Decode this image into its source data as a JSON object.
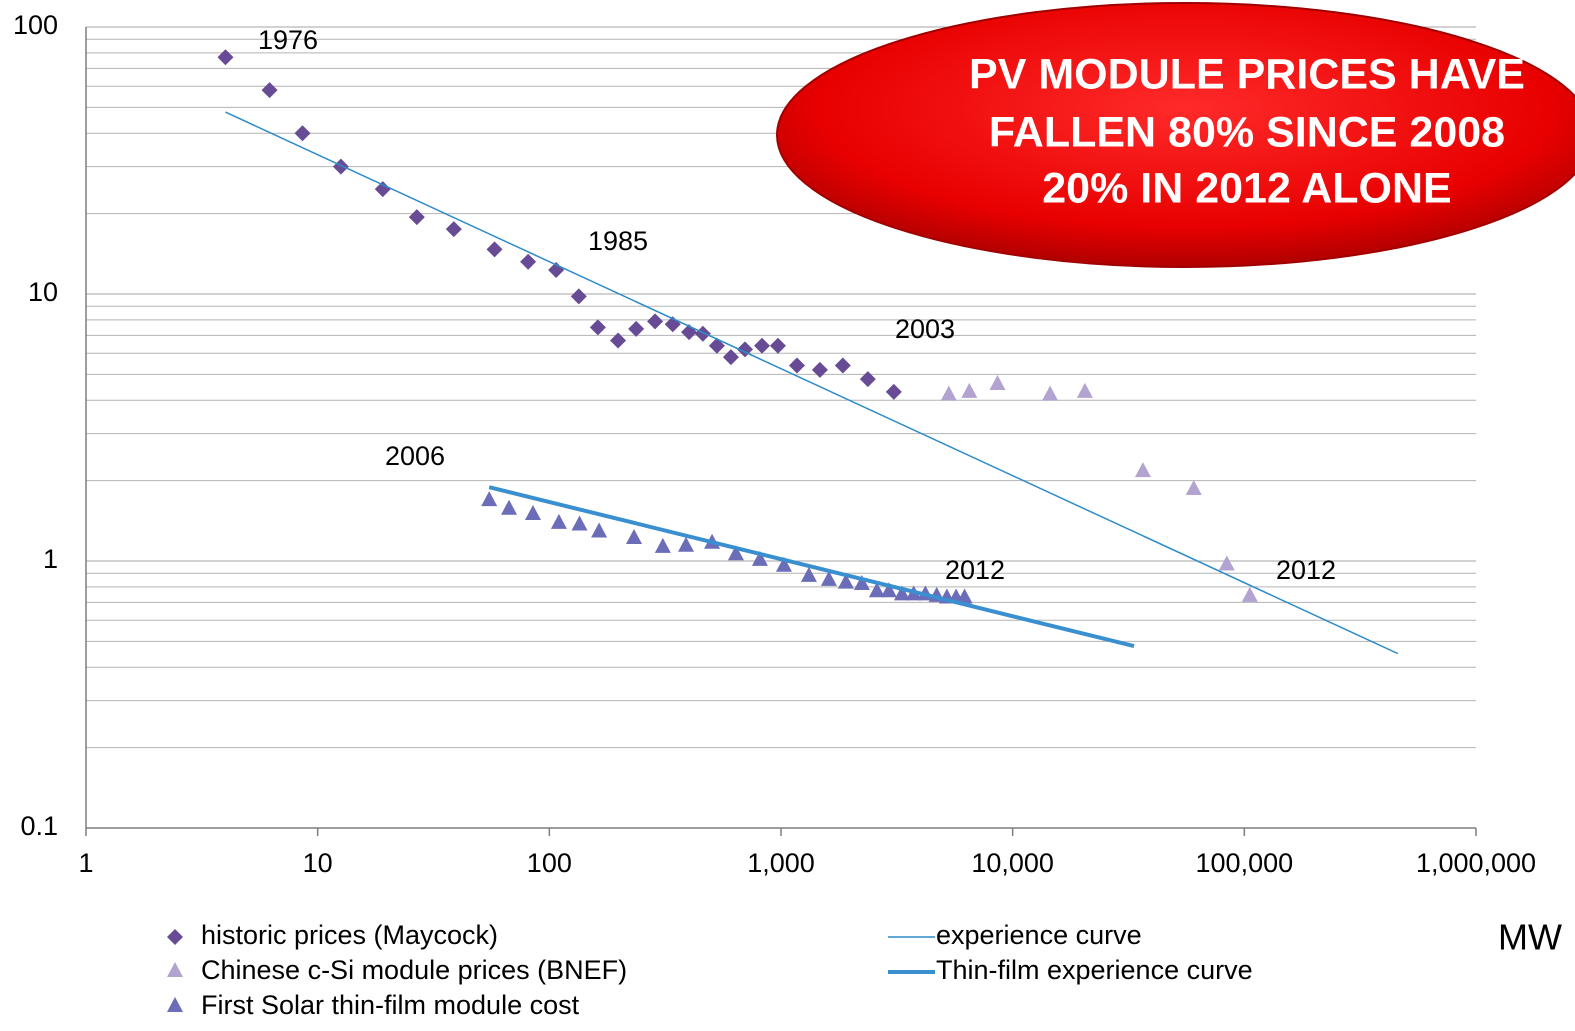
{
  "chart_data": {
    "type": "scatter",
    "xlabel": "MW",
    "xlog": true,
    "ylog": true,
    "xlim": [
      1,
      1000000
    ],
    "ylim": [
      0.1,
      100
    ],
    "xticks": [
      1,
      10,
      100,
      {
        "value": 1000,
        "label": "1,000"
      },
      {
        "value": 10000,
        "label": "10,000"
      },
      {
        "value": 100000,
        "label": "100,000"
      },
      {
        "value": 1000000,
        "label": "1,000,000"
      }
    ],
    "yticks": [
      0.1,
      1,
      10,
      100
    ],
    "grid": true,
    "minor_grid": true,
    "series": [
      {
        "name": "historic prices (Maycock)",
        "color": "#674c95",
        "marker": "diamond",
        "x": [
          4,
          6.2,
          8.6,
          12.6,
          19.1,
          26.8,
          38.7,
          58,
          81,
          107,
          134,
          162,
          198,
          237,
          286,
          341,
          401,
          460,
          529,
          608,
          699,
          828,
          970,
          1172,
          1472,
          1849,
          2371,
          3069
        ],
        "values": [
          77,
          58,
          40,
          30,
          24.7,
          19.4,
          17.5,
          14.7,
          13.2,
          12.3,
          9.8,
          7.5,
          6.7,
          7.4,
          7.9,
          7.7,
          7.2,
          7.1,
          6.4,
          5.8,
          6.2,
          6.4,
          6.4,
          5.4,
          5.2,
          5.4,
          4.8,
          4.3
        ]
      },
      {
        "name": "Chinese c-Si module prices (BNEF)",
        "color": "#b2a3d0",
        "marker": "triangle",
        "x": [
          5300,
          6500,
          8600,
          14500,
          20500,
          36500,
          60500,
          84000,
          105600
        ],
        "values": [
          4.2,
          4.3,
          4.6,
          4.2,
          4.3,
          2.17,
          1.86,
          0.97,
          0.74
        ]
      },
      {
        "name": "First Solar thin-film module cost",
        "color": "#6b6db8",
        "marker": "triangle",
        "x": [
          55,
          67,
          85,
          110,
          135,
          164,
          232,
          309,
          389,
          504,
          639,
          811,
          1030,
          1320,
          1610,
          1906,
          2234,
          2594,
          2922,
          3327,
          3740,
          4200,
          4700,
          5200,
          5700,
          6200
        ],
        "values": [
          1.69,
          1.57,
          1.5,
          1.39,
          1.37,
          1.29,
          1.22,
          1.13,
          1.14,
          1.17,
          1.06,
          1.01,
          0.96,
          0.88,
          0.85,
          0.83,
          0.82,
          0.77,
          0.77,
          0.75,
          0.75,
          0.75,
          0.74,
          0.73,
          0.73,
          0.73
        ]
      },
      {
        "name": "experience curve",
        "color": "#2e8bc9",
        "marker": "line",
        "width": 1.5,
        "x": [
          4,
          460000
        ],
        "values": [
          48,
          0.45
        ]
      },
      {
        "name": "Thin-film experience curve",
        "color": "#3a8fd0",
        "marker": "line",
        "width": 4,
        "x": [
          55,
          33400
        ],
        "values": [
          1.89,
          0.48
        ]
      }
    ],
    "annotations": [
      "1976",
      "1985",
      "2003",
      "2006",
      "2012",
      "2012"
    ],
    "callout": [
      "PV MODULE PRICES HAVE",
      "FALLEN 80% SINCE 2008",
      "20% IN 2012 ALONE"
    ]
  }
}
